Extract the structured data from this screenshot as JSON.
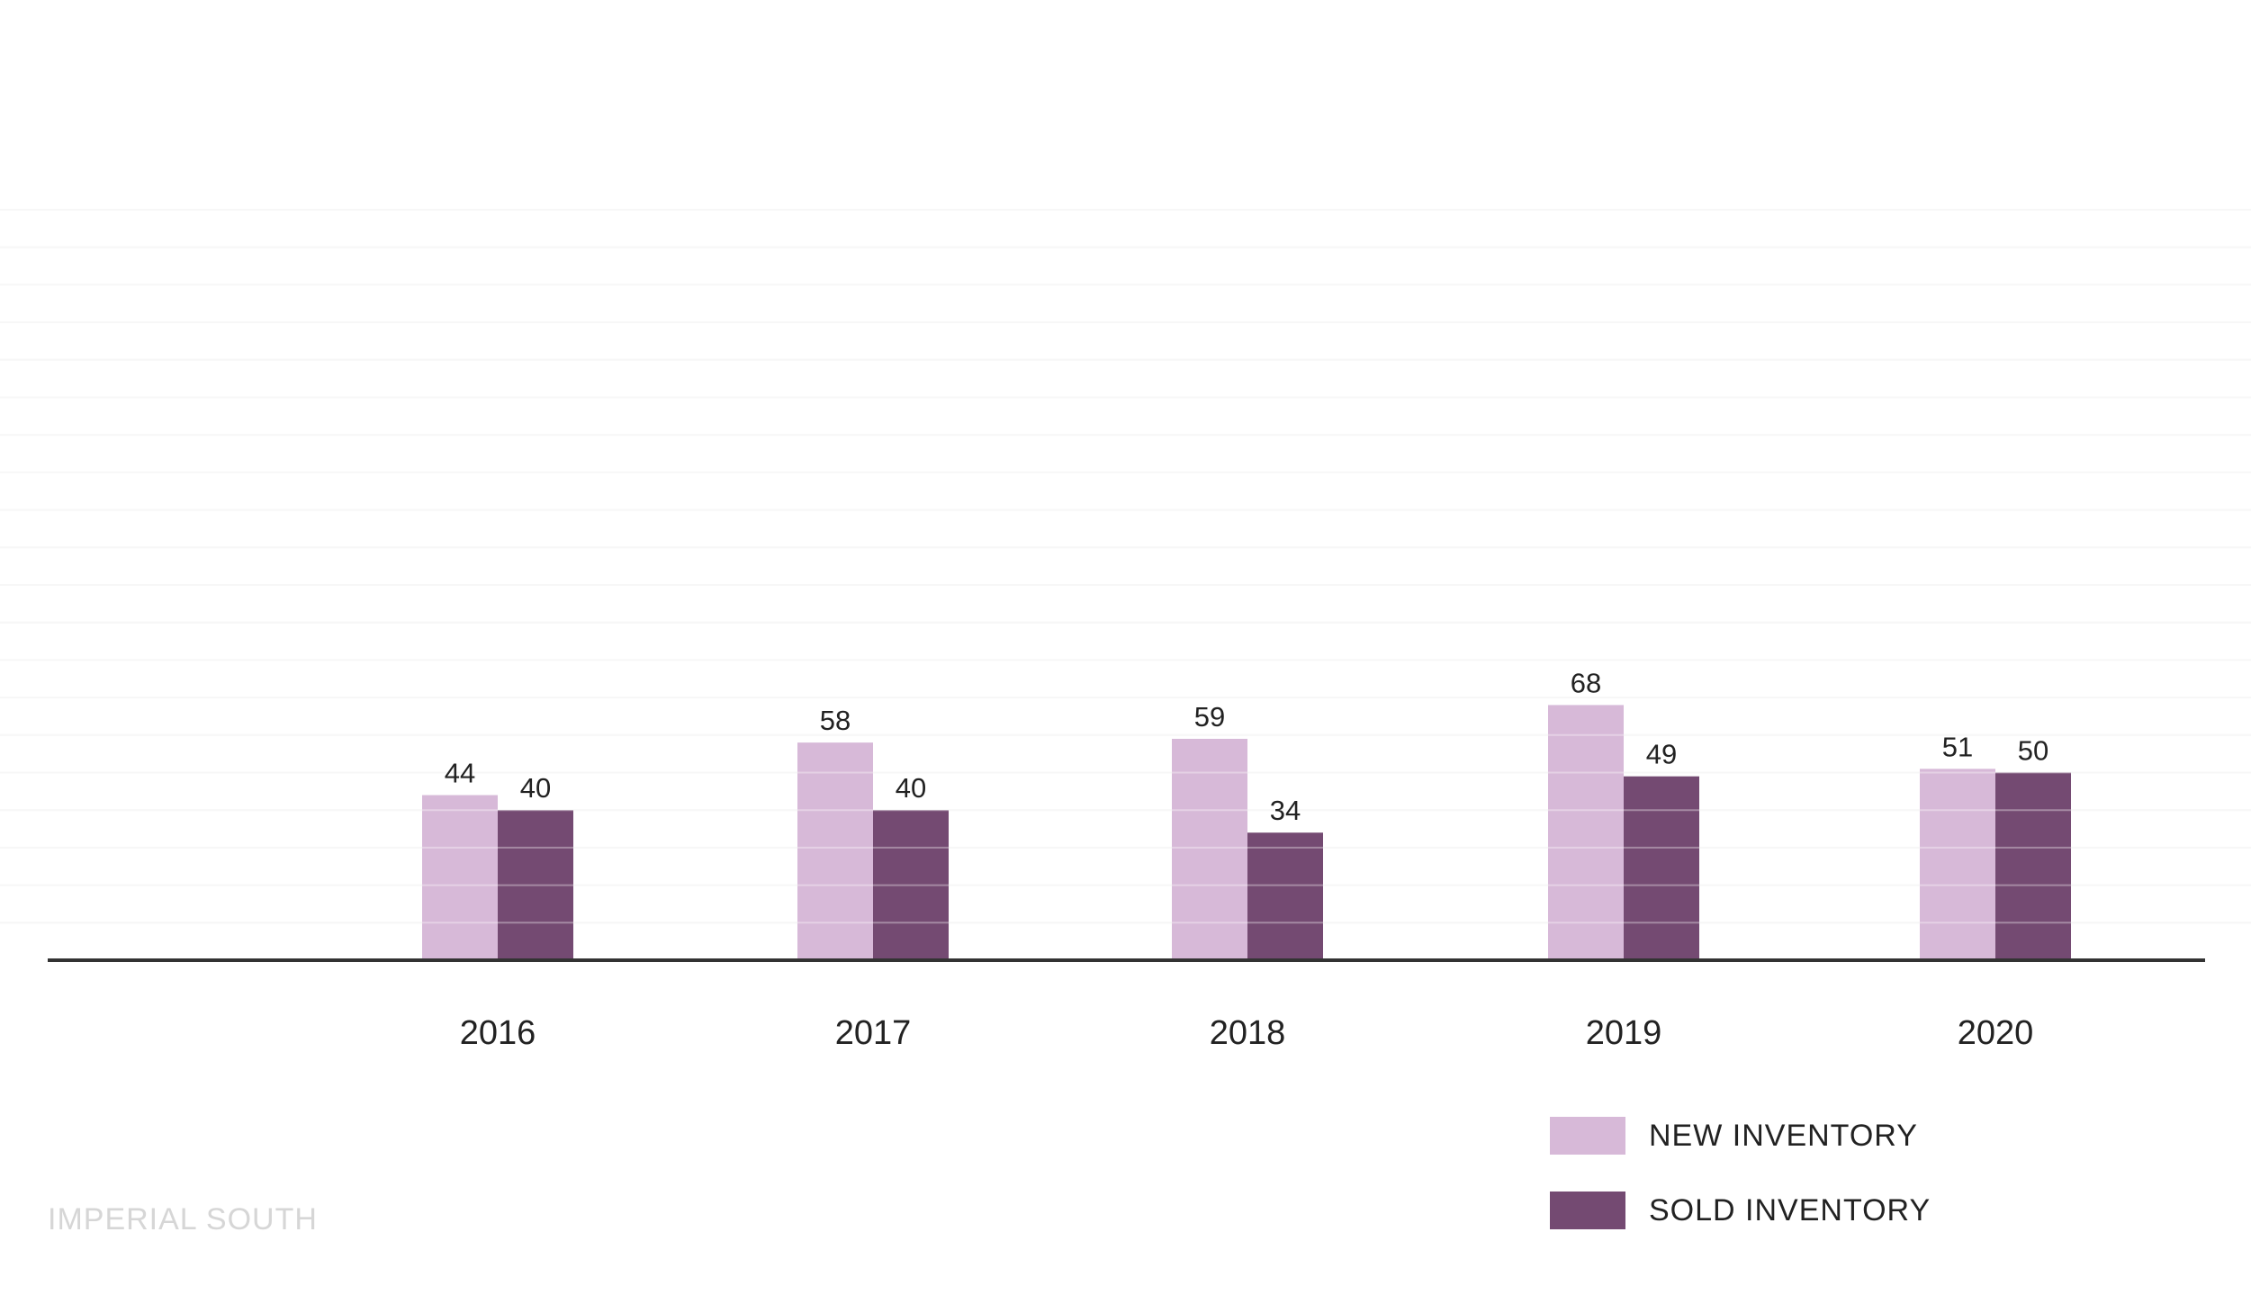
{
  "chart_data": {
    "type": "bar",
    "categories": [
      "2016",
      "2017",
      "2018",
      "2019",
      "2020"
    ],
    "series": [
      {
        "name": "NEW INVENTORY",
        "values": [
          44,
          58,
          59,
          68,
          51
        ],
        "color": "#d7b9d8"
      },
      {
        "name": "SOLD INVENTORY",
        "values": [
          40,
          40,
          34,
          49,
          50
        ],
        "color": "#744a72"
      }
    ],
    "ylim": [
      0,
      200
    ],
    "grid": true,
    "gridline_step": 10,
    "legend_position": "bottom-right",
    "data_labels": true
  },
  "footer_label": "IMPERIAL SOUTH",
  "colors": {
    "axis": "#333333",
    "grid": "#f3f3f3",
    "text": "#222222",
    "footer": "#d6d6d6"
  }
}
